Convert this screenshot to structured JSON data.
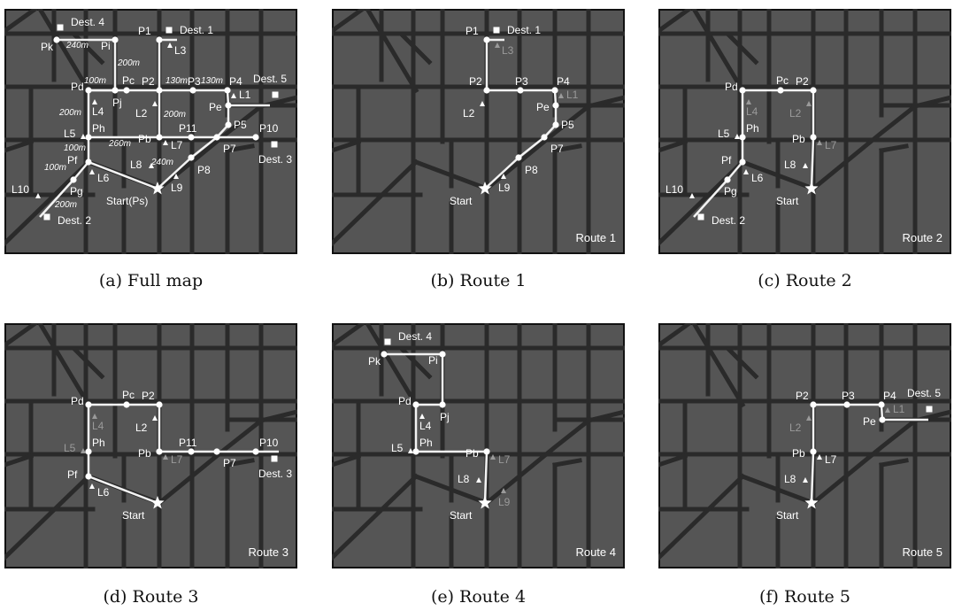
{
  "figure": {
    "route_colors": {
      "map_bg": "#555555",
      "road": "#2a2a2a",
      "route": "#f2f2f2",
      "label": "#ffffff",
      "dim_label": "#9a9a9a"
    },
    "panels": [
      {
        "id": "a",
        "caption": "(a) Full map",
        "corner_label": "",
        "landmarks": [
          {
            "name": "L1",
            "active": true
          },
          {
            "name": "L2",
            "active": true
          },
          {
            "name": "L3",
            "active": true
          },
          {
            "name": "L4",
            "active": true
          },
          {
            "name": "L5",
            "active": true
          },
          {
            "name": "L6",
            "active": true
          },
          {
            "name": "L7",
            "active": true
          },
          {
            "name": "L8",
            "active": true
          },
          {
            "name": "L9",
            "active": true
          },
          {
            "name": "L10",
            "active": true
          }
        ],
        "points": [
          "Pk",
          "Pi",
          "P1",
          "Pd",
          "Pc",
          "Pj",
          "P2",
          "P3",
          "P4",
          "Pe",
          "Ph",
          "P5",
          "P10",
          "P11",
          "Pb",
          "P7",
          "P8",
          "Pf",
          "Pg"
        ],
        "destinations": [
          "Dest. 1",
          "Dest. 2",
          "Dest. 3",
          "Dest. 4",
          "Dest. 5"
        ],
        "start_label": "Start(Ps)",
        "distances": [
          "240m",
          "200m",
          "100m",
          "130m",
          "130m",
          "200m",
          "200m",
          "260m",
          "100m",
          "100m",
          "240m",
          "200m"
        ]
      },
      {
        "id": "b",
        "caption": "(b) Route 1",
        "corner_label": "Route 1",
        "landmarks": [
          {
            "name": "L3",
            "active": false
          },
          {
            "name": "L2",
            "active": true
          },
          {
            "name": "L1",
            "active": false
          },
          {
            "name": "L9",
            "active": true
          }
        ],
        "points": [
          "P1",
          "P2",
          "P3",
          "P4",
          "Pe",
          "P5",
          "P7",
          "P8"
        ],
        "destinations": [
          "Dest. 1"
        ],
        "start_label": "Start"
      },
      {
        "id": "c",
        "caption": "(c) Route 2",
        "corner_label": "Route 2",
        "landmarks": [
          {
            "name": "L4",
            "active": false
          },
          {
            "name": "L2",
            "active": false
          },
          {
            "name": "L5",
            "active": true
          },
          {
            "name": "L7",
            "active": false
          },
          {
            "name": "L8",
            "active": true
          },
          {
            "name": "L6",
            "active": true
          },
          {
            "name": "L10",
            "active": true
          }
        ],
        "points": [
          "Pd",
          "Pc",
          "P2",
          "Ph",
          "Pb",
          "Pf",
          "Pg"
        ],
        "destinations": [
          "Dest. 2"
        ],
        "start_label": "Start"
      },
      {
        "id": "d",
        "caption": "(d) Route 3",
        "corner_label": "Route 3",
        "landmarks": [
          {
            "name": "L4",
            "active": false
          },
          {
            "name": "L2",
            "active": true
          },
          {
            "name": "L5",
            "active": false
          },
          {
            "name": "L7",
            "active": false
          },
          {
            "name": "L6",
            "active": true
          }
        ],
        "points": [
          "Pd",
          "Pc",
          "P2",
          "Ph",
          "Pb",
          "P11",
          "P7",
          "P10",
          "Pf"
        ],
        "destinations": [
          "Dest. 3"
        ],
        "start_label": "Start"
      },
      {
        "id": "e",
        "caption": "(e) Route 4",
        "corner_label": "Route 4",
        "landmarks": [
          {
            "name": "L4",
            "active": true
          },
          {
            "name": "L5",
            "active": true
          },
          {
            "name": "L7",
            "active": false
          },
          {
            "name": "L8",
            "active": true
          },
          {
            "name": "L9",
            "active": false
          }
        ],
        "points": [
          "Pk",
          "Pi",
          "Pj",
          "Pd",
          "Ph",
          "Pb"
        ],
        "destinations": [
          "Dest. 4"
        ],
        "start_label": "Start"
      },
      {
        "id": "f",
        "caption": "(f) Route 5",
        "corner_label": "Route 5",
        "landmarks": [
          {
            "name": "L2",
            "active": false
          },
          {
            "name": "L1",
            "active": false
          },
          {
            "name": "L7",
            "active": true
          },
          {
            "name": "L8",
            "active": true
          }
        ],
        "points": [
          "P2",
          "P3",
          "P4",
          "Pe",
          "Pb"
        ],
        "destinations": [
          "Dest. 5"
        ],
        "start_label": "Start"
      }
    ]
  }
}
